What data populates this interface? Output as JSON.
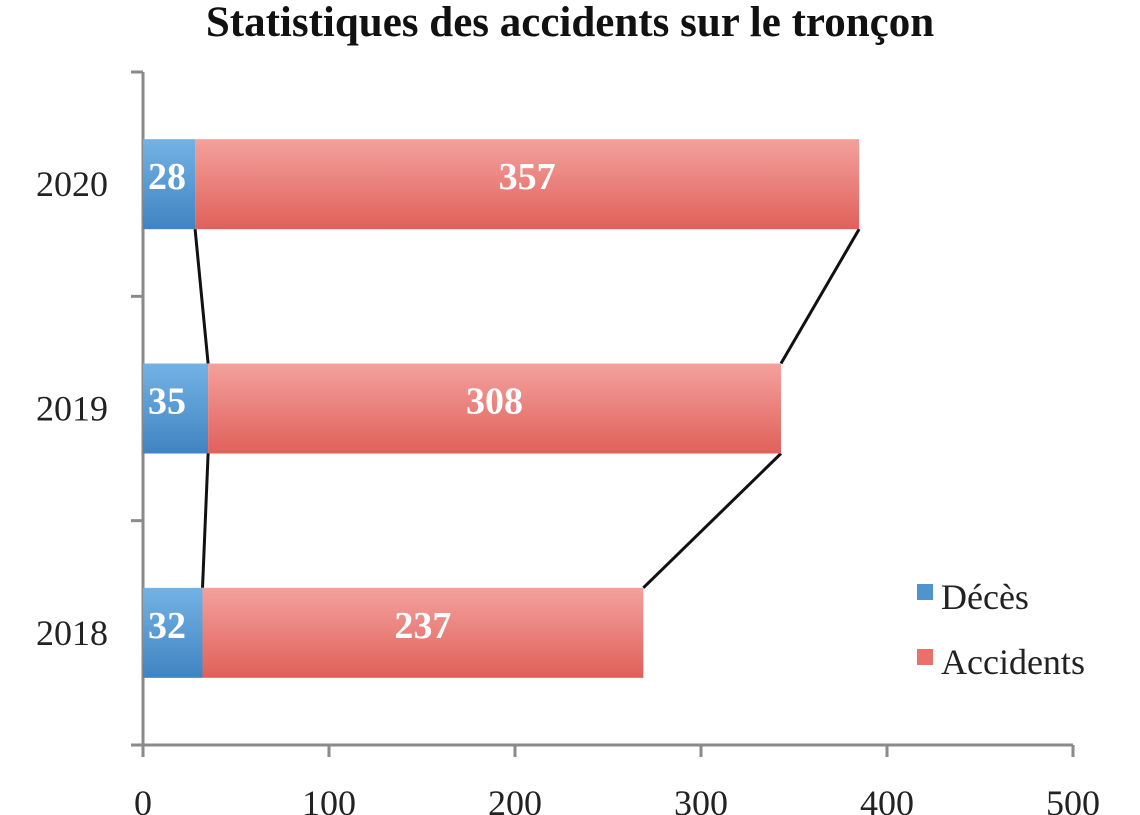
{
  "chart_data": {
    "type": "bar",
    "orientation": "horizontal",
    "stacked": true,
    "title": "Statistiques des accidents sur le tronçon",
    "xlabel": "",
    "ylabel": "",
    "categories": [
      "2020",
      "2019",
      "2018"
    ],
    "series": [
      {
        "name": "Décès",
        "values": [
          28,
          35,
          32
        ],
        "color": "#4f93cf"
      },
      {
        "name": "Accidents",
        "values": [
          357,
          308,
          237
        ],
        "color": "#e8716c"
      }
    ],
    "xlim": [
      0,
      500
    ],
    "xticks": [
      "0",
      "100",
      "200",
      "300",
      "400",
      "500"
    ],
    "grid": false,
    "series_lines": true,
    "legend_position": "right"
  }
}
